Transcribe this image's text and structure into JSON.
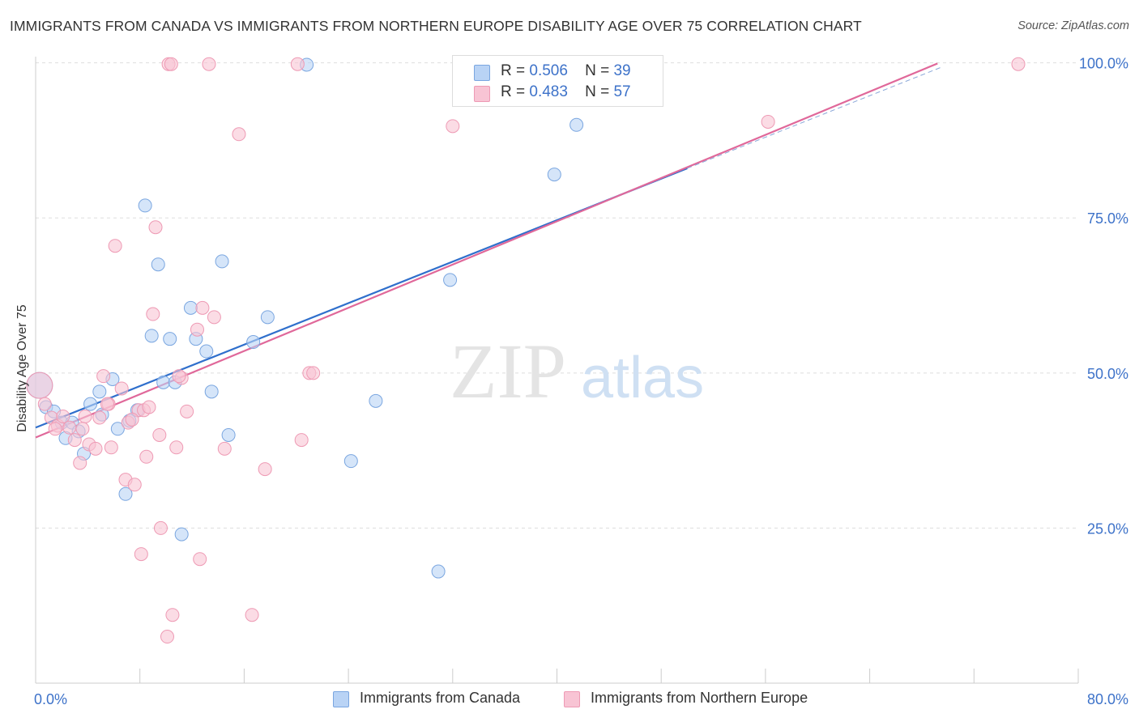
{
  "title": "IMMIGRANTS FROM CANADA VS IMMIGRANTS FROM NORTHERN EUROPE DISABILITY AGE OVER 75 CORRELATION CHART",
  "source": "Source: ZipAtlas.com",
  "watermark": {
    "zip": "ZIP",
    "atlas": "atlas"
  },
  "legend": {
    "r_label": "R =",
    "n_label": "N =",
    "series": [
      {
        "r": "0.506",
        "n": "39"
      },
      {
        "r": "0.483",
        "n": "57"
      }
    ]
  },
  "colors": {
    "canada_fill": "#b9d3f5",
    "canada_stroke": "#7aa6e0",
    "canada_line": "#2f6fcc",
    "europe_fill": "#f8c4d4",
    "europe_stroke": "#ee9ab4",
    "europe_line": "#e0689a",
    "axis_text": "#3d72c9",
    "grid": "#dddddd"
  },
  "chart_data": {
    "type": "scatter",
    "xlabel": "",
    "ylabel": "Disability Age Over 75",
    "xlim": [
      0,
      80
    ],
    "ylim": [
      0,
      101
    ],
    "x_tick_labels": [
      {
        "value": 0,
        "label": "0.0%"
      },
      {
        "value": 80,
        "label": "80.0%"
      }
    ],
    "y_tick_labels": [
      {
        "value": 25,
        "label": "25.0%"
      },
      {
        "value": 50,
        "label": "50.0%"
      },
      {
        "value": 75,
        "label": "75.0%"
      },
      {
        "value": 100,
        "label": "100.0%"
      }
    ],
    "x_minor_ticks": [
      0,
      8,
      16,
      24,
      32,
      40,
      48,
      56,
      64,
      72,
      80
    ],
    "grid": true,
    "series": [
      {
        "name": "Immigrants from Canada",
        "r": 0.506,
        "n": 39,
        "trend": {
          "x": [
            0,
            50
          ],
          "y": [
            41.2,
            83.0
          ]
        },
        "points": [
          {
            "x": 0.3,
            "y": 48.0,
            "big": true
          },
          {
            "x": 0.8,
            "y": 44.5
          },
          {
            "x": 1.4,
            "y": 43.8
          },
          {
            "x": 2.0,
            "y": 42.0
          },
          {
            "x": 2.3,
            "y": 39.5
          },
          {
            "x": 2.8,
            "y": 42.0
          },
          {
            "x": 3.3,
            "y": 40.6
          },
          {
            "x": 3.7,
            "y": 37.0
          },
          {
            "x": 4.2,
            "y": 45.0
          },
          {
            "x": 4.9,
            "y": 47.0
          },
          {
            "x": 5.1,
            "y": 43.3
          },
          {
            "x": 5.9,
            "y": 49.0
          },
          {
            "x": 6.3,
            "y": 41.0
          },
          {
            "x": 6.9,
            "y": 30.5
          },
          {
            "x": 7.2,
            "y": 42.3
          },
          {
            "x": 7.8,
            "y": 44.0
          },
          {
            "x": 8.4,
            "y": 77.0
          },
          {
            "x": 8.9,
            "y": 56.0
          },
          {
            "x": 9.4,
            "y": 67.5
          },
          {
            "x": 9.8,
            "y": 48.5
          },
          {
            "x": 10.3,
            "y": 55.5
          },
          {
            "x": 10.7,
            "y": 48.5
          },
          {
            "x": 11.2,
            "y": 24.0
          },
          {
            "x": 11.9,
            "y": 60.5
          },
          {
            "x": 12.3,
            "y": 55.5
          },
          {
            "x": 13.1,
            "y": 53.5
          },
          {
            "x": 13.5,
            "y": 47.0
          },
          {
            "x": 14.3,
            "y": 68.0
          },
          {
            "x": 14.8,
            "y": 40.0
          },
          {
            "x": 16.7,
            "y": 55.0
          },
          {
            "x": 17.8,
            "y": 59.0
          },
          {
            "x": 20.8,
            "y": 99.7
          },
          {
            "x": 24.2,
            "y": 35.8
          },
          {
            "x": 26.1,
            "y": 45.5
          },
          {
            "x": 30.9,
            "y": 18.0
          },
          {
            "x": 31.8,
            "y": 65.0
          },
          {
            "x": 34.0,
            "y": 99.7
          },
          {
            "x": 39.8,
            "y": 82.0
          },
          {
            "x": 41.5,
            "y": 90.0
          }
        ]
      },
      {
        "name": "Immigrants from Northern Europe",
        "r": 0.483,
        "n": 57,
        "trend": {
          "x": [
            0,
            69.2
          ],
          "y": [
            39.6,
            99.9
          ]
        },
        "points": [
          {
            "x": 0.3,
            "y": 48.0,
            "big": true
          },
          {
            "x": 0.7,
            "y": 45.0
          },
          {
            "x": 1.2,
            "y": 42.8
          },
          {
            "x": 1.7,
            "y": 41.5
          },
          {
            "x": 2.1,
            "y": 43.0
          },
          {
            "x": 2.6,
            "y": 41.2
          },
          {
            "x": 3.0,
            "y": 39.2
          },
          {
            "x": 3.4,
            "y": 35.5
          },
          {
            "x": 3.8,
            "y": 43.0
          },
          {
            "x": 4.1,
            "y": 38.5
          },
          {
            "x": 4.6,
            "y": 37.8
          },
          {
            "x": 4.9,
            "y": 42.8
          },
          {
            "x": 5.2,
            "y": 49.5
          },
          {
            "x": 5.6,
            "y": 45.0
          },
          {
            "x": 5.8,
            "y": 38.0
          },
          {
            "x": 6.1,
            "y": 70.5
          },
          {
            "x": 6.6,
            "y": 47.5
          },
          {
            "x": 6.9,
            "y": 32.8
          },
          {
            "x": 7.1,
            "y": 42.0
          },
          {
            "x": 7.6,
            "y": 32.0
          },
          {
            "x": 7.9,
            "y": 44.0
          },
          {
            "x": 8.1,
            "y": 20.8
          },
          {
            "x": 8.3,
            "y": 44.0
          },
          {
            "x": 8.5,
            "y": 36.5
          },
          {
            "x": 8.7,
            "y": 44.5
          },
          {
            "x": 9.0,
            "y": 59.5
          },
          {
            "x": 9.2,
            "y": 73.5
          },
          {
            "x": 9.5,
            "y": 40.0
          },
          {
            "x": 9.6,
            "y": 25.0
          },
          {
            "x": 10.1,
            "y": 7.5
          },
          {
            "x": 10.2,
            "y": 99.8
          },
          {
            "x": 10.4,
            "y": 99.8
          },
          {
            "x": 10.5,
            "y": 11.0
          },
          {
            "x": 10.8,
            "y": 38.0
          },
          {
            "x": 11.2,
            "y": 49.2
          },
          {
            "x": 11.6,
            "y": 43.8
          },
          {
            "x": 12.4,
            "y": 57.0
          },
          {
            "x": 12.6,
            "y": 20.0
          },
          {
            "x": 12.8,
            "y": 60.5
          },
          {
            "x": 13.3,
            "y": 99.8
          },
          {
            "x": 13.7,
            "y": 59.0
          },
          {
            "x": 14.5,
            "y": 37.8
          },
          {
            "x": 15.6,
            "y": 88.5
          },
          {
            "x": 16.6,
            "y": 11.0
          },
          {
            "x": 17.6,
            "y": 34.5
          },
          {
            "x": 20.1,
            "y": 99.8
          },
          {
            "x": 20.4,
            "y": 39.2
          },
          {
            "x": 21.0,
            "y": 50.0
          },
          {
            "x": 21.3,
            "y": 50.0
          },
          {
            "x": 32.0,
            "y": 89.8
          },
          {
            "x": 56.2,
            "y": 90.5
          },
          {
            "x": 75.4,
            "y": 99.8
          },
          {
            "x": 1.5,
            "y": 41.0
          },
          {
            "x": 3.6,
            "y": 41.0
          },
          {
            "x": 5.5,
            "y": 45.0
          },
          {
            "x": 7.4,
            "y": 42.5
          },
          {
            "x": 11.0,
            "y": 49.5
          }
        ]
      }
    ]
  }
}
